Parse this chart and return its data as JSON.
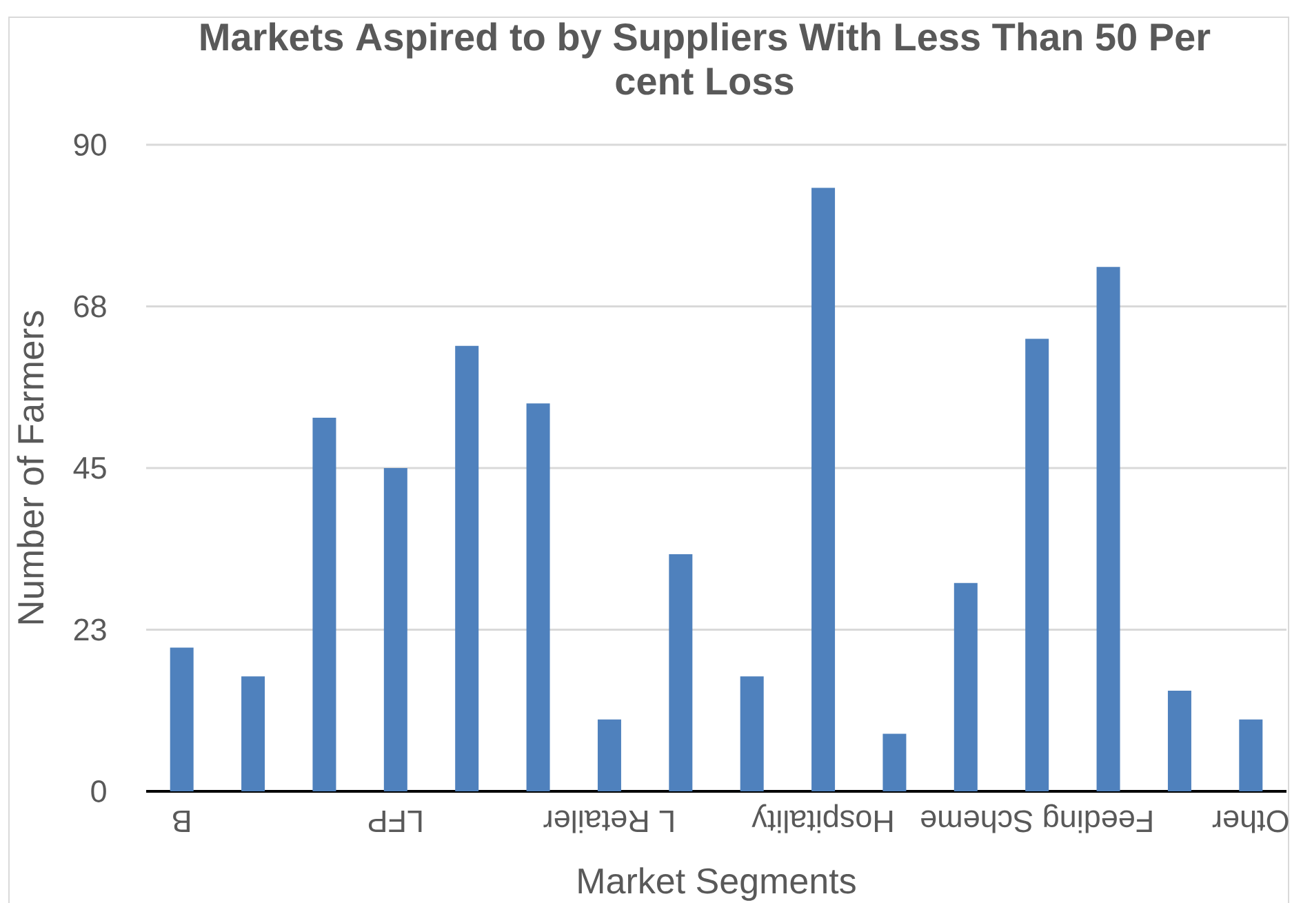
{
  "chart_data": {
    "type": "bar",
    "title": "Markets Aspired to by Suppliers With Less Than 50 Per cent Loss",
    "xlabel": "Market Segments",
    "ylabel": "Number of Farmers",
    "categories": [
      "B",
      null,
      null,
      "LFP",
      null,
      null,
      "L Retailer",
      null,
      null,
      "Hospitality",
      null,
      null,
      "Feeding Scheme",
      null,
      null,
      "Other"
    ],
    "values": [
      20,
      16,
      52,
      45,
      62,
      54,
      10,
      33,
      16,
      84,
      8,
      29,
      63,
      73,
      14,
      10
    ],
    "color": "#4f81bd",
    "ylim": [
      0,
      90
    ],
    "yticks": [
      0,
      {
        "value": 22.5,
        "label": "23"
      },
      45,
      {
        "value": 67.5,
        "label": "68"
      },
      90
    ],
    "grid": "y"
  }
}
